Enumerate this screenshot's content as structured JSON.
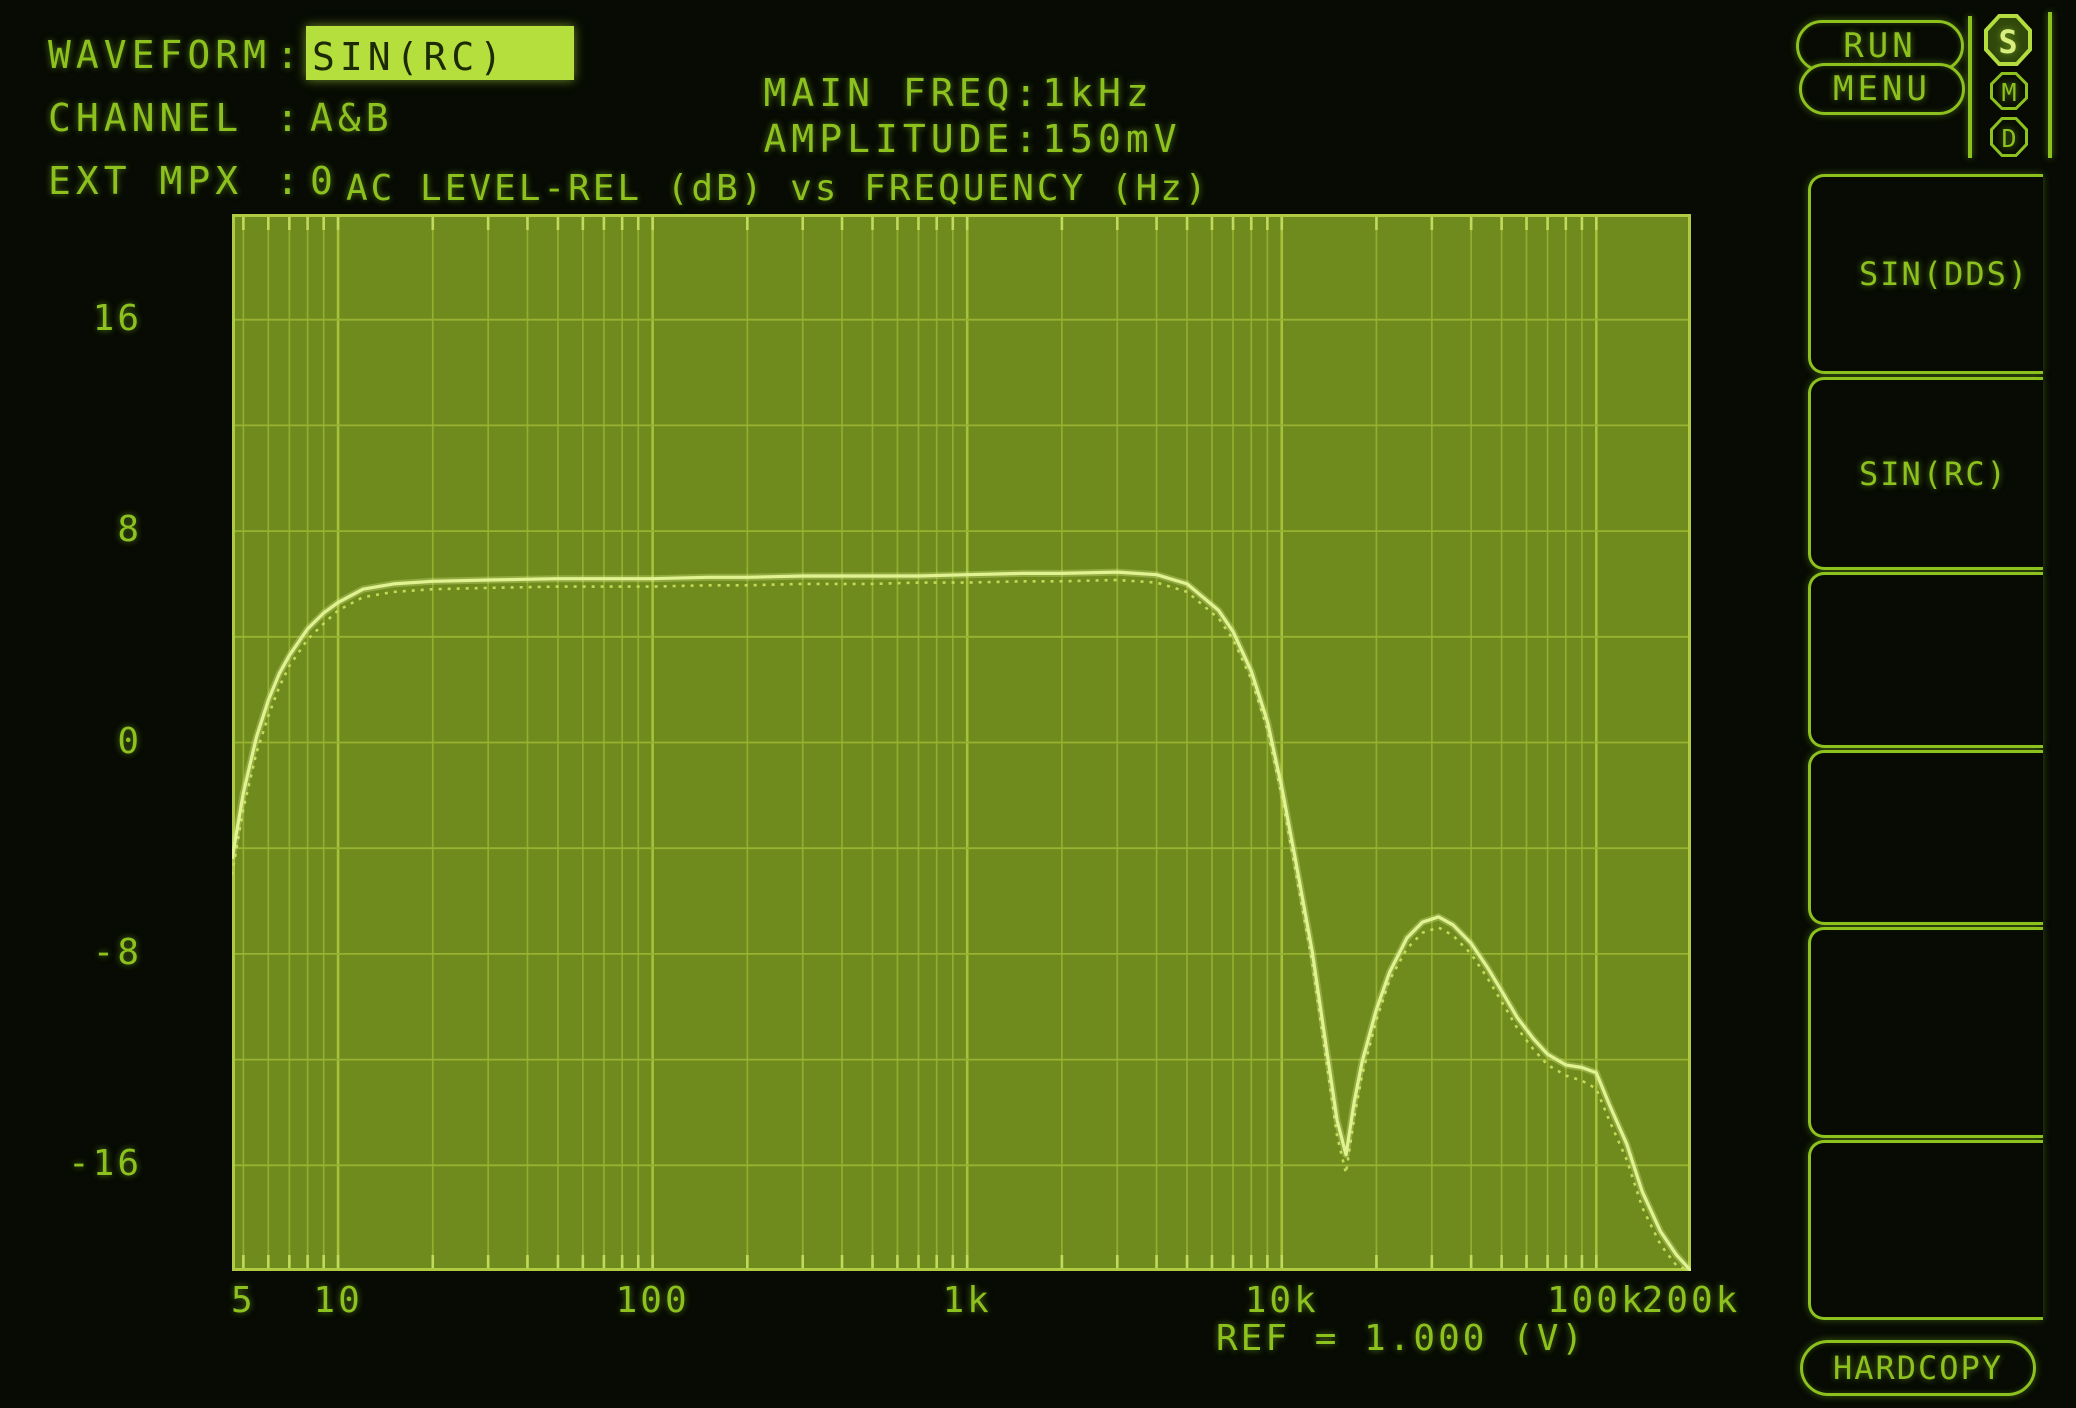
{
  "header": {
    "fields": [
      {
        "label": "WAVEFORM",
        "sep": ":",
        "value": "SIN(RC)",
        "highlighted": true
      },
      {
        "label": "CHANNEL",
        "sep": ":",
        "value": "A&B"
      },
      {
        "label": "EXT MPX",
        "sep": ":",
        "value": "0"
      }
    ],
    "right_fields": [
      {
        "label": "MAIN FREQ:",
        "value": "1kHz"
      },
      {
        "label": "AMPLITUDE:",
        "value": "150mV"
      }
    ]
  },
  "top_buttons": {
    "run_label": "RUN",
    "menu_label": "MENU",
    "indicators": [
      {
        "label": "S",
        "active": true
      },
      {
        "label": "M",
        "active": false
      },
      {
        "label": "D",
        "active": false
      }
    ]
  },
  "softkeys": {
    "items": [
      {
        "label": "SIN(DDS)"
      },
      {
        "label": "SIN(RC)"
      },
      {
        "label": ""
      },
      {
        "label": ""
      },
      {
        "label": ""
      },
      {
        "label": ""
      }
    ],
    "hardcopy_label": "HARDCOPY"
  },
  "chart_data": {
    "type": "line",
    "title": "AC LEVEL-REL (dB) vs FREQUENCY (Hz)",
    "xlabel": "FREQUENCY (Hz)",
    "ylabel": "AC LEVEL-REL (dB)",
    "x_scale": "log",
    "xlim": [
      4.6,
      200000
    ],
    "ylim": [
      -20,
      20
    ],
    "grid_db_step": 4,
    "grid_on": true,
    "ref_label": "REF = 1.000 (V)",
    "x_ticks": [
      {
        "f": 5,
        "label": "5"
      },
      {
        "f": 10,
        "label": "10"
      },
      {
        "f": 100,
        "label": "100"
      },
      {
        "f": 1000,
        "label": "1k"
      },
      {
        "f": 10000,
        "label": "10k"
      },
      {
        "f": 100000,
        "label": "100k"
      },
      {
        "f": 200000,
        "label": "200k"
      }
    ],
    "y_ticks": [
      {
        "v": 16,
        "label": "16"
      },
      {
        "v": 8,
        "label": "8"
      },
      {
        "v": 0,
        "label": "0"
      },
      {
        "v": -8,
        "label": "-8"
      },
      {
        "v": -16,
        "label": "-16"
      }
    ],
    "series": [
      {
        "name": "CHANNEL B",
        "style": "dotted",
        "color": "#c3da57",
        "points": [
          [
            4.6,
            -5.0
          ],
          [
            5,
            -2.5
          ],
          [
            5.5,
            -0.4
          ],
          [
            6,
            1.0
          ],
          [
            6.5,
            2.1
          ],
          [
            7,
            2.9
          ],
          [
            8,
            3.9
          ],
          [
            9,
            4.5
          ],
          [
            10,
            5.0
          ],
          [
            12,
            5.5
          ],
          [
            15,
            5.7
          ],
          [
            20,
            5.8
          ],
          [
            30,
            5.85
          ],
          [
            50,
            5.9
          ],
          [
            80,
            5.9
          ],
          [
            100,
            5.9
          ],
          [
            150,
            5.95
          ],
          [
            200,
            5.95
          ],
          [
            300,
            6.0
          ],
          [
            500,
            6.0
          ],
          [
            700,
            6.05
          ],
          [
            1000,
            6.05
          ],
          [
            1500,
            6.1
          ],
          [
            2000,
            6.1
          ],
          [
            3000,
            6.15
          ],
          [
            4000,
            6.05
          ],
          [
            5000,
            5.7
          ],
          [
            6300,
            4.7
          ],
          [
            7000,
            3.9
          ],
          [
            8000,
            2.4
          ],
          [
            9000,
            0.5
          ],
          [
            10000,
            -2.0
          ],
          [
            11000,
            -4.7
          ],
          [
            12500,
            -8.3
          ],
          [
            14000,
            -12.4
          ],
          [
            15000,
            -14.9
          ],
          [
            16000,
            -16.3
          ],
          [
            17000,
            -14.2
          ],
          [
            18000,
            -12.6
          ],
          [
            20000,
            -10.5
          ],
          [
            22000,
            -9.0
          ],
          [
            25000,
            -7.8
          ],
          [
            28000,
            -7.2
          ],
          [
            31500,
            -7.0
          ],
          [
            35000,
            -7.3
          ],
          [
            40000,
            -8.0
          ],
          [
            45000,
            -8.9
          ],
          [
            50000,
            -9.8
          ],
          [
            56000,
            -10.8
          ],
          [
            63000,
            -11.6
          ],
          [
            70000,
            -12.2
          ],
          [
            80000,
            -12.6
          ],
          [
            90000,
            -12.8
          ],
          [
            100000,
            -13.1
          ],
          [
            110000,
            -14.3
          ],
          [
            125000,
            -15.8
          ],
          [
            140000,
            -17.6
          ],
          [
            160000,
            -19.0
          ],
          [
            180000,
            -19.8
          ],
          [
            200000,
            -20.0
          ]
        ]
      },
      {
        "name": "CHANNEL A",
        "style": "solid",
        "color": "#e0f292",
        "points": [
          [
            4.6,
            -4.4
          ],
          [
            5,
            -1.9
          ],
          [
            5.5,
            0.2
          ],
          [
            6,
            1.6
          ],
          [
            6.5,
            2.6
          ],
          [
            7,
            3.3
          ],
          [
            8,
            4.3
          ],
          [
            9,
            4.9
          ],
          [
            10,
            5.3
          ],
          [
            12,
            5.8
          ],
          [
            15,
            6.0
          ],
          [
            20,
            6.1
          ],
          [
            30,
            6.15
          ],
          [
            50,
            6.2
          ],
          [
            80,
            6.2
          ],
          [
            100,
            6.2
          ],
          [
            150,
            6.25
          ],
          [
            200,
            6.25
          ],
          [
            300,
            6.3
          ],
          [
            500,
            6.3
          ],
          [
            700,
            6.3
          ],
          [
            1000,
            6.35
          ],
          [
            1500,
            6.4
          ],
          [
            2000,
            6.4
          ],
          [
            3000,
            6.45
          ],
          [
            4000,
            6.35
          ],
          [
            5000,
            6.0
          ],
          [
            6300,
            5.0
          ],
          [
            7000,
            4.2
          ],
          [
            8000,
            2.7
          ],
          [
            9000,
            0.8
          ],
          [
            10000,
            -1.7
          ],
          [
            11000,
            -4.3
          ],
          [
            12500,
            -7.9
          ],
          [
            14000,
            -11.9
          ],
          [
            15000,
            -14.3
          ],
          [
            16000,
            -15.6
          ],
          [
            17000,
            -13.6
          ],
          [
            18000,
            -12.1
          ],
          [
            20000,
            -10.1
          ],
          [
            22000,
            -8.7
          ],
          [
            25000,
            -7.4
          ],
          [
            28000,
            -6.8
          ],
          [
            31500,
            -6.6
          ],
          [
            35000,
            -6.9
          ],
          [
            40000,
            -7.6
          ],
          [
            45000,
            -8.5
          ],
          [
            50000,
            -9.4
          ],
          [
            56000,
            -10.4
          ],
          [
            63000,
            -11.2
          ],
          [
            70000,
            -11.8
          ],
          [
            80000,
            -12.2
          ],
          [
            90000,
            -12.3
          ],
          [
            100000,
            -12.5
          ],
          [
            110000,
            -13.7
          ],
          [
            125000,
            -15.2
          ],
          [
            140000,
            -17.0
          ],
          [
            160000,
            -18.5
          ],
          [
            180000,
            -19.4
          ],
          [
            200000,
            -20.0
          ]
        ]
      }
    ]
  }
}
